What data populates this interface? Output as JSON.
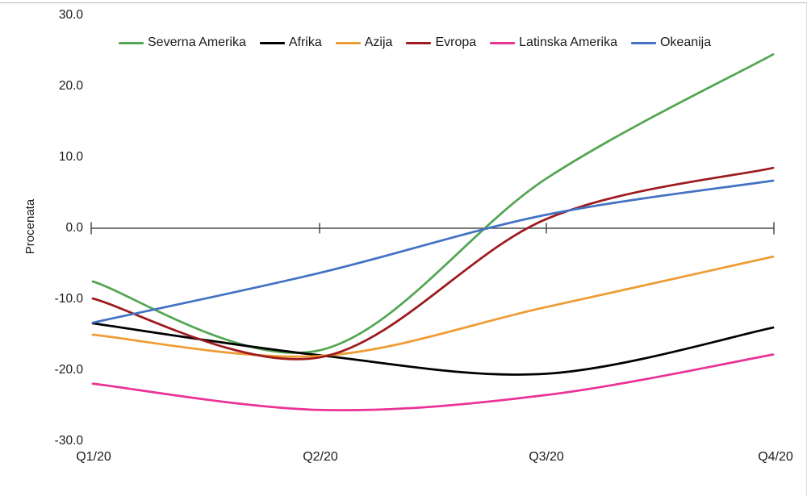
{
  "chart_data": {
    "type": "line",
    "title": "",
    "xlabel": "",
    "ylabel": "Procenata",
    "categories": [
      "Q1/20",
      "Q2/20",
      "Q3/20",
      "Q4/20"
    ],
    "ytick_labels": [
      "30.0",
      "20.0",
      "10.0",
      "0.0",
      "-10.0",
      "-20.0",
      "-30.0"
    ],
    "ylim": [
      -30,
      30
    ],
    "grid": false,
    "smoothed_lines": true,
    "legend_position": "top",
    "axis_color": "#4a4a4a",
    "series": [
      {
        "name": "Severna Amerika",
        "color": "#53a653",
        "values": [
          -7.5,
          -17.2,
          7.0,
          24.5
        ]
      },
      {
        "name": "Afrika",
        "color": "#000000",
        "values": [
          -13.4,
          -17.9,
          -20.5,
          -14.0
        ]
      },
      {
        "name": "Azija",
        "color": "#ee9c34",
        "values": [
          -15.0,
          -18.0,
          -11.1,
          -4.0
        ]
      },
      {
        "name": "Evropa",
        "color": "#9e1b1f",
        "values": [
          -9.9,
          -18.2,
          1.3,
          8.5
        ]
      },
      {
        "name": "Latinska Amerika",
        "color": "#ea3397",
        "values": [
          -21.9,
          -25.6,
          -23.5,
          -17.8
        ]
      },
      {
        "name": "Okeanija",
        "color": "#4472c4",
        "values": [
          -13.3,
          -6.3,
          1.9,
          6.7
        ]
      }
    ]
  }
}
